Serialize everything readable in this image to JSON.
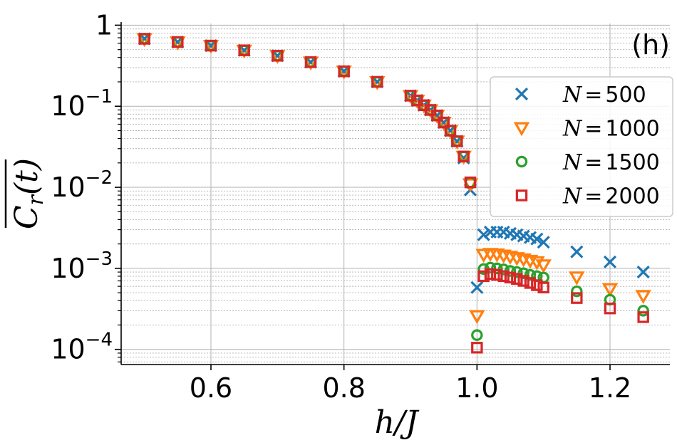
{
  "chart_data": {
    "type": "scatter",
    "panel_label": "(h)",
    "xlabel": "h/J",
    "ylabel": "C_r(t) (overlined)",
    "ylabel_parts": {
      "base": "C",
      "sub": "r",
      "arg": "(t)"
    },
    "xlim": [
      0.465,
      1.29
    ],
    "ylim": [
      6.5e-05,
      1.05
    ],
    "yscale": "log",
    "grid": true,
    "legend_position": "right",
    "x_ticks": [
      0.6,
      0.8,
      1.0,
      1.2
    ],
    "x_tick_labels": [
      "0.6",
      "0.8",
      "1.0",
      "1.2"
    ],
    "y_ticks": [
      1,
      0.1,
      0.01,
      0.001,
      0.0001
    ],
    "y_tick_labels": [
      {
        "base": "1",
        "exp": ""
      },
      {
        "base": "10",
        "exp": "−1"
      },
      {
        "base": "10",
        "exp": "−2"
      },
      {
        "base": "10",
        "exp": "−3"
      },
      {
        "base": "10",
        "exp": "−4"
      }
    ],
    "series": [
      {
        "name": "N = 500",
        "legend_var": "N",
        "legend_value": "500",
        "marker": "x",
        "color": "#1f77b4",
        "x": [
          0.5,
          0.55,
          0.6,
          0.65,
          0.7,
          0.75,
          0.8,
          0.85,
          0.9,
          0.91,
          0.92,
          0.93,
          0.94,
          0.95,
          0.96,
          0.97,
          0.98,
          0.99,
          1.0,
          1.01,
          1.02,
          1.03,
          1.04,
          1.05,
          1.06,
          1.07,
          1.08,
          1.09,
          1.1,
          1.15,
          1.2,
          1.25
        ],
        "y": [
          0.68,
          0.62,
          0.56,
          0.49,
          0.42,
          0.35,
          0.27,
          0.2,
          0.135,
          0.118,
          0.103,
          0.09,
          0.077,
          0.063,
          0.05,
          0.037,
          0.023,
          0.0093,
          0.00058,
          0.0026,
          0.0028,
          0.0028,
          0.0028,
          0.0027,
          0.0026,
          0.0025,
          0.0024,
          0.0023,
          0.0021,
          0.0016,
          0.0012,
          0.0009
        ]
      },
      {
        "name": "N = 1000",
        "legend_var": "N",
        "legend_value": "1000",
        "marker": "triangle-down",
        "color": "#ff7f0e",
        "x": [
          0.5,
          0.55,
          0.6,
          0.65,
          0.7,
          0.75,
          0.8,
          0.85,
          0.9,
          0.91,
          0.92,
          0.93,
          0.94,
          0.95,
          0.96,
          0.97,
          0.98,
          0.99,
          1.0,
          1.01,
          1.02,
          1.03,
          1.04,
          1.05,
          1.06,
          1.07,
          1.08,
          1.09,
          1.1,
          1.15,
          1.2,
          1.25
        ],
        "y": [
          0.68,
          0.62,
          0.56,
          0.49,
          0.42,
          0.35,
          0.27,
          0.2,
          0.135,
          0.118,
          0.103,
          0.09,
          0.077,
          0.063,
          0.05,
          0.037,
          0.024,
          0.011,
          0.00026,
          0.00148,
          0.00152,
          0.0015,
          0.00145,
          0.0014,
          0.00135,
          0.0013,
          0.00125,
          0.0012,
          0.0011,
          0.00078,
          0.00056,
          0.00046
        ]
      },
      {
        "name": "N = 1500",
        "legend_var": "N",
        "legend_value": "1500",
        "marker": "circle",
        "color": "#2ca02c",
        "x": [
          0.5,
          0.55,
          0.6,
          0.65,
          0.7,
          0.75,
          0.8,
          0.85,
          0.9,
          0.91,
          0.92,
          0.93,
          0.94,
          0.95,
          0.96,
          0.97,
          0.98,
          0.99,
          1.0,
          1.01,
          1.02,
          1.03,
          1.04,
          1.05,
          1.06,
          1.07,
          1.08,
          1.09,
          1.1,
          1.15,
          1.2,
          1.25
        ],
        "y": [
          0.68,
          0.62,
          0.56,
          0.49,
          0.42,
          0.35,
          0.27,
          0.2,
          0.135,
          0.118,
          0.103,
          0.09,
          0.077,
          0.063,
          0.05,
          0.037,
          0.024,
          0.0115,
          0.00015,
          0.00098,
          0.00102,
          0.001,
          0.00097,
          0.00093,
          0.0009,
          0.00087,
          0.00083,
          0.0008,
          0.00077,
          0.00052,
          0.00041,
          0.0003
        ]
      },
      {
        "name": "N = 2000",
        "legend_var": "N",
        "legend_value": "2000",
        "marker": "square",
        "color": "#d62728",
        "x": [
          0.5,
          0.55,
          0.6,
          0.65,
          0.7,
          0.75,
          0.8,
          0.85,
          0.9,
          0.91,
          0.92,
          0.93,
          0.94,
          0.95,
          0.96,
          0.97,
          0.98,
          0.99,
          1.0,
          1.01,
          1.02,
          1.03,
          1.04,
          1.05,
          1.06,
          1.07,
          1.08,
          1.09,
          1.1,
          1.15,
          1.2,
          1.25
        ],
        "y": [
          0.68,
          0.62,
          0.56,
          0.49,
          0.42,
          0.35,
          0.27,
          0.2,
          0.135,
          0.118,
          0.103,
          0.09,
          0.077,
          0.063,
          0.05,
          0.037,
          0.024,
          0.0115,
          0.000105,
          0.0008,
          0.00085,
          0.00083,
          0.0008,
          0.00077,
          0.00074,
          0.0007,
          0.00066,
          0.00062,
          0.00058,
          0.00043,
          0.00032,
          0.00025
        ]
      }
    ]
  }
}
